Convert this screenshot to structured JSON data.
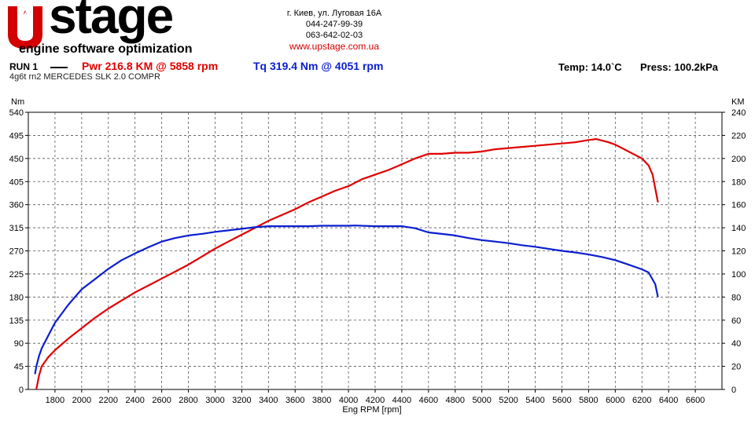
{
  "header": {
    "logo_text": "stage",
    "logo_tagline": "engine software optimization",
    "address": "г. Киев, ул. Луговая 16А",
    "phone1": "044-247-99-39",
    "phone2": "063-642-02-03",
    "website": "www.upstage.com.ua",
    "run_label": "RUN 1",
    "power_summary": "Pwr  216.8 KM @ 5858 rpm",
    "torque_summary": "Tq 319.4 Nm @ 4051 rpm",
    "temperature": "Temp: 14.0`C",
    "pressure": "Press: 100.2kPa",
    "vehicle": "4g6t rn2 MERCEDES SLK 2.0 COMPR"
  },
  "colors": {
    "power": "#e00000",
    "torque": "#0a1ed0",
    "brand_red": "#d40000"
  },
  "chart_data": {
    "type": "line",
    "xlabel": "Eng RPM [rpm]",
    "ylabel": "Nm",
    "y2label": "KM",
    "xlim": [
      1600,
      6800
    ],
    "ylim": [
      0,
      540
    ],
    "y2lim": [
      0,
      240
    ],
    "x_ticks": [
      1800,
      2000,
      2200,
      2400,
      2600,
      2800,
      3000,
      3200,
      3400,
      3600,
      3800,
      4000,
      4200,
      4400,
      4600,
      4800,
      5000,
      5200,
      5400,
      5600,
      5800,
      6000,
      6200,
      6400,
      6600
    ],
    "y_ticks": [
      0,
      45,
      90,
      135,
      180,
      225,
      270,
      315,
      360,
      405,
      450,
      495,
      540
    ],
    "y2_ticks": [
      0,
      20,
      40,
      60,
      80,
      100,
      120,
      140,
      160,
      180,
      200,
      220,
      240
    ],
    "grid": true,
    "series": [
      {
        "axis": "y2",
        "color": "#e00000",
        "points": [
          [
            1660,
            0
          ],
          [
            1680,
            12
          ],
          [
            1700,
            20
          ],
          [
            1750,
            28
          ],
          [
            1800,
            34
          ],
          [
            1900,
            44
          ],
          [
            2000,
            53
          ],
          [
            2100,
            62
          ],
          [
            2200,
            70
          ],
          [
            2300,
            77
          ],
          [
            2400,
            84
          ],
          [
            2500,
            90
          ],
          [
            2600,
            96
          ],
          [
            2700,
            102
          ],
          [
            2800,
            108
          ],
          [
            2900,
            115
          ],
          [
            3000,
            122
          ],
          [
            3100,
            128
          ],
          [
            3200,
            134
          ],
          [
            3300,
            140
          ],
          [
            3400,
            146
          ],
          [
            3500,
            151
          ],
          [
            3600,
            156
          ],
          [
            3700,
            162
          ],
          [
            3800,
            167
          ],
          [
            3900,
            172
          ],
          [
            4000,
            176
          ],
          [
            4100,
            182
          ],
          [
            4200,
            186
          ],
          [
            4300,
            190
          ],
          [
            4400,
            195
          ],
          [
            4500,
            200
          ],
          [
            4600,
            204
          ],
          [
            4700,
            204
          ],
          [
            4800,
            205
          ],
          [
            4900,
            205
          ],
          [
            5000,
            206
          ],
          [
            5100,
            208
          ],
          [
            5200,
            209
          ],
          [
            5300,
            210
          ],
          [
            5400,
            211
          ],
          [
            5500,
            212
          ],
          [
            5600,
            213
          ],
          [
            5700,
            214
          ],
          [
            5800,
            216
          ],
          [
            5858,
            216.8
          ],
          [
            5950,
            214
          ],
          [
            6000,
            212
          ],
          [
            6100,
            206
          ],
          [
            6200,
            200
          ],
          [
            6250,
            194
          ],
          [
            6280,
            186
          ],
          [
            6300,
            174
          ],
          [
            6320,
            162
          ]
        ]
      },
      {
        "axis": "y",
        "color": "#0a1ed0",
        "points": [
          [
            1650,
            30
          ],
          [
            1660,
            45
          ],
          [
            1680,
            65
          ],
          [
            1700,
            80
          ],
          [
            1750,
            105
          ],
          [
            1800,
            130
          ],
          [
            1900,
            165
          ],
          [
            2000,
            195
          ],
          [
            2100,
            215
          ],
          [
            2200,
            235
          ],
          [
            2300,
            252
          ],
          [
            2400,
            265
          ],
          [
            2500,
            277
          ],
          [
            2600,
            288
          ],
          [
            2700,
            295
          ],
          [
            2800,
            300
          ],
          [
            2900,
            303
          ],
          [
            3000,
            307
          ],
          [
            3100,
            310
          ],
          [
            3200,
            313
          ],
          [
            3300,
            316
          ],
          [
            3400,
            318
          ],
          [
            3500,
            318
          ],
          [
            3600,
            318
          ],
          [
            3700,
            318
          ],
          [
            3800,
            319
          ],
          [
            4000,
            319
          ],
          [
            4051,
            319.4
          ],
          [
            4200,
            318
          ],
          [
            4300,
            318
          ],
          [
            4400,
            318
          ],
          [
            4500,
            314
          ],
          [
            4600,
            306
          ],
          [
            4700,
            303
          ],
          [
            4800,
            300
          ],
          [
            4900,
            295
          ],
          [
            5000,
            291
          ],
          [
            5100,
            288
          ],
          [
            5200,
            285
          ],
          [
            5300,
            281
          ],
          [
            5400,
            278
          ],
          [
            5500,
            274
          ],
          [
            5600,
            270
          ],
          [
            5700,
            267
          ],
          [
            5800,
            263
          ],
          [
            5900,
            258
          ],
          [
            6000,
            252
          ],
          [
            6100,
            243
          ],
          [
            6200,
            234
          ],
          [
            6250,
            228
          ],
          [
            6300,
            205
          ],
          [
            6320,
            180
          ]
        ]
      }
    ]
  }
}
